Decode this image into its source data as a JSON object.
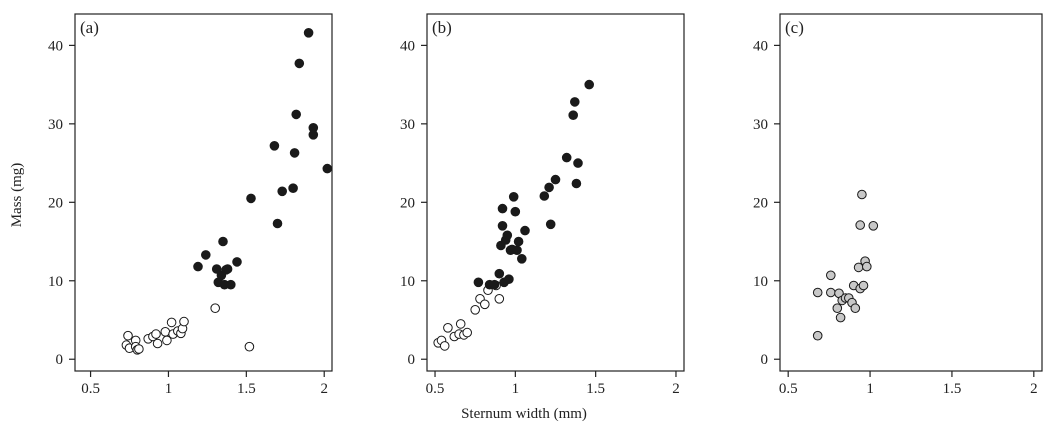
{
  "figure": {
    "ylabel": "Mass (mg)",
    "xlabel": "Sternum width (mm)"
  },
  "chart_data": [
    {
      "type": "scatter",
      "panel_label": "(a)",
      "xlim": [
        0.4,
        2.05
      ],
      "ylim": [
        -1.5,
        44
      ],
      "x_ticks": [
        "0.5",
        "1",
        "1.5",
        "2"
      ],
      "x_tick_values": [
        0.5,
        1,
        1.5,
        2
      ],
      "y_ticks": [
        "0",
        "10",
        "20",
        "30",
        "40"
      ],
      "y_tick_values": [
        0,
        10,
        20,
        30,
        40
      ],
      "series": [
        {
          "marker": "open",
          "color": "#ffffff",
          "points": [
            [
              0.73,
              1.8
            ],
            [
              0.74,
              3.0
            ],
            [
              0.75,
              1.4
            ],
            [
              0.79,
              2.4
            ],
            [
              0.79,
              1.6
            ],
            [
              0.8,
              1.2
            ],
            [
              0.81,
              1.3
            ],
            [
              0.87,
              2.6
            ],
            [
              0.9,
              2.9
            ],
            [
              0.92,
              3.2
            ],
            [
              0.93,
              2.0
            ],
            [
              0.98,
              3.5
            ],
            [
              0.99,
              2.4
            ],
            [
              1.02,
              4.7
            ],
            [
              1.03,
              3.2
            ],
            [
              1.06,
              3.6
            ],
            [
              1.08,
              3.3
            ],
            [
              1.09,
              3.9
            ],
            [
              1.1,
              4.8
            ],
            [
              1.3,
              6.5
            ],
            [
              1.52,
              1.6
            ]
          ]
        },
        {
          "marker": "filled",
          "color": "#1a1a1a",
          "points": [
            [
              1.19,
              11.8
            ],
            [
              1.24,
              13.3
            ],
            [
              1.31,
              11.5
            ],
            [
              1.32,
              9.8
            ],
            [
              1.34,
              10.7
            ],
            [
              1.35,
              15.0
            ],
            [
              1.36,
              9.5
            ],
            [
              1.37,
              11.4
            ],
            [
              1.38,
              11.5
            ],
            [
              1.4,
              9.5
            ],
            [
              1.44,
              12.4
            ],
            [
              1.53,
              20.5
            ],
            [
              1.68,
              27.2
            ],
            [
              1.7,
              17.3
            ],
            [
              1.73,
              21.4
            ],
            [
              1.8,
              21.8
            ],
            [
              1.81,
              26.3
            ],
            [
              1.82,
              31.2
            ],
            [
              1.84,
              37.7
            ],
            [
              1.9,
              41.6
            ],
            [
              1.93,
              28.6
            ],
            [
              1.93,
              29.5
            ],
            [
              2.02,
              24.3
            ]
          ]
        }
      ]
    },
    {
      "type": "scatter",
      "panel_label": "(b)",
      "xlim": [
        0.45,
        2.05
      ],
      "ylim": [
        -1.5,
        44
      ],
      "x_ticks": [
        "0.5",
        "1",
        "1.5",
        "2"
      ],
      "x_tick_values": [
        0.5,
        1,
        1.5,
        2
      ],
      "y_ticks": [
        "0",
        "10",
        "20",
        "30",
        "40"
      ],
      "y_tick_values": [
        0,
        10,
        20,
        30,
        40
      ],
      "series": [
        {
          "marker": "open",
          "color": "#ffffff",
          "points": [
            [
              0.52,
              2.1
            ],
            [
              0.54,
              2.4
            ],
            [
              0.56,
              1.7
            ],
            [
              0.58,
              4.0
            ],
            [
              0.62,
              2.9
            ],
            [
              0.65,
              3.2
            ],
            [
              0.66,
              4.5
            ],
            [
              0.68,
              3.1
            ],
            [
              0.7,
              3.4
            ],
            [
              0.75,
              6.3
            ],
            [
              0.78,
              7.7
            ],
            [
              0.81,
              7.0
            ],
            [
              0.83,
              8.8
            ],
            [
              0.88,
              9.4
            ],
            [
              0.9,
              7.7
            ]
          ]
        },
        {
          "marker": "filled",
          "color": "#1a1a1a",
          "points": [
            [
              0.77,
              9.8
            ],
            [
              0.84,
              9.5
            ],
            [
              0.87,
              9.5
            ],
            [
              0.9,
              10.9
            ],
            [
              0.91,
              14.5
            ],
            [
              0.92,
              17.0
            ],
            [
              0.92,
              19.2
            ],
            [
              0.93,
              9.8
            ],
            [
              0.94,
              15.2
            ],
            [
              0.95,
              15.8
            ],
            [
              0.96,
              10.2
            ],
            [
              0.97,
              13.9
            ],
            [
              0.98,
              14.0
            ],
            [
              0.99,
              20.7
            ],
            [
              1.0,
              18.8
            ],
            [
              1.01,
              13.9
            ],
            [
              1.02,
              15.0
            ],
            [
              1.04,
              12.8
            ],
            [
              1.06,
              16.4
            ],
            [
              1.18,
              20.8
            ],
            [
              1.21,
              21.9
            ],
            [
              1.22,
              17.2
            ],
            [
              1.25,
              22.9
            ],
            [
              1.32,
              25.7
            ],
            [
              1.36,
              31.1
            ],
            [
              1.37,
              32.8
            ],
            [
              1.38,
              22.4
            ],
            [
              1.39,
              25.0
            ],
            [
              1.46,
              35.0
            ]
          ]
        }
      ]
    },
    {
      "type": "scatter",
      "panel_label": "(c)",
      "xlim": [
        0.45,
        2.05
      ],
      "ylim": [
        -1.5,
        44
      ],
      "x_ticks": [
        "0.5",
        "1",
        "1.5",
        "2"
      ],
      "x_tick_values": [
        0.5,
        1,
        1.5,
        2
      ],
      "y_ticks": [
        "0",
        "10",
        "20",
        "30",
        "40"
      ],
      "y_tick_values": [
        0,
        10,
        20,
        30,
        40
      ],
      "series": [
        {
          "marker": "grey",
          "color": "#c8c8c8",
          "points": [
            [
              0.68,
              3.0
            ],
            [
              0.68,
              8.5
            ],
            [
              0.76,
              10.7
            ],
            [
              0.76,
              8.5
            ],
            [
              0.8,
              6.5
            ],
            [
              0.81,
              8.4
            ],
            [
              0.82,
              5.3
            ],
            [
              0.83,
              7.5
            ],
            [
              0.85,
              7.8
            ],
            [
              0.87,
              7.8
            ],
            [
              0.89,
              7.2
            ],
            [
              0.9,
              9.4
            ],
            [
              0.91,
              6.5
            ],
            [
              0.93,
              11.7
            ],
            [
              0.94,
              17.1
            ],
            [
              0.94,
              9.0
            ],
            [
              0.95,
              21.0
            ],
            [
              0.96,
              9.4
            ],
            [
              0.97,
              12.5
            ],
            [
              0.98,
              11.8
            ],
            [
              1.02,
              17.0
            ]
          ]
        }
      ]
    }
  ]
}
